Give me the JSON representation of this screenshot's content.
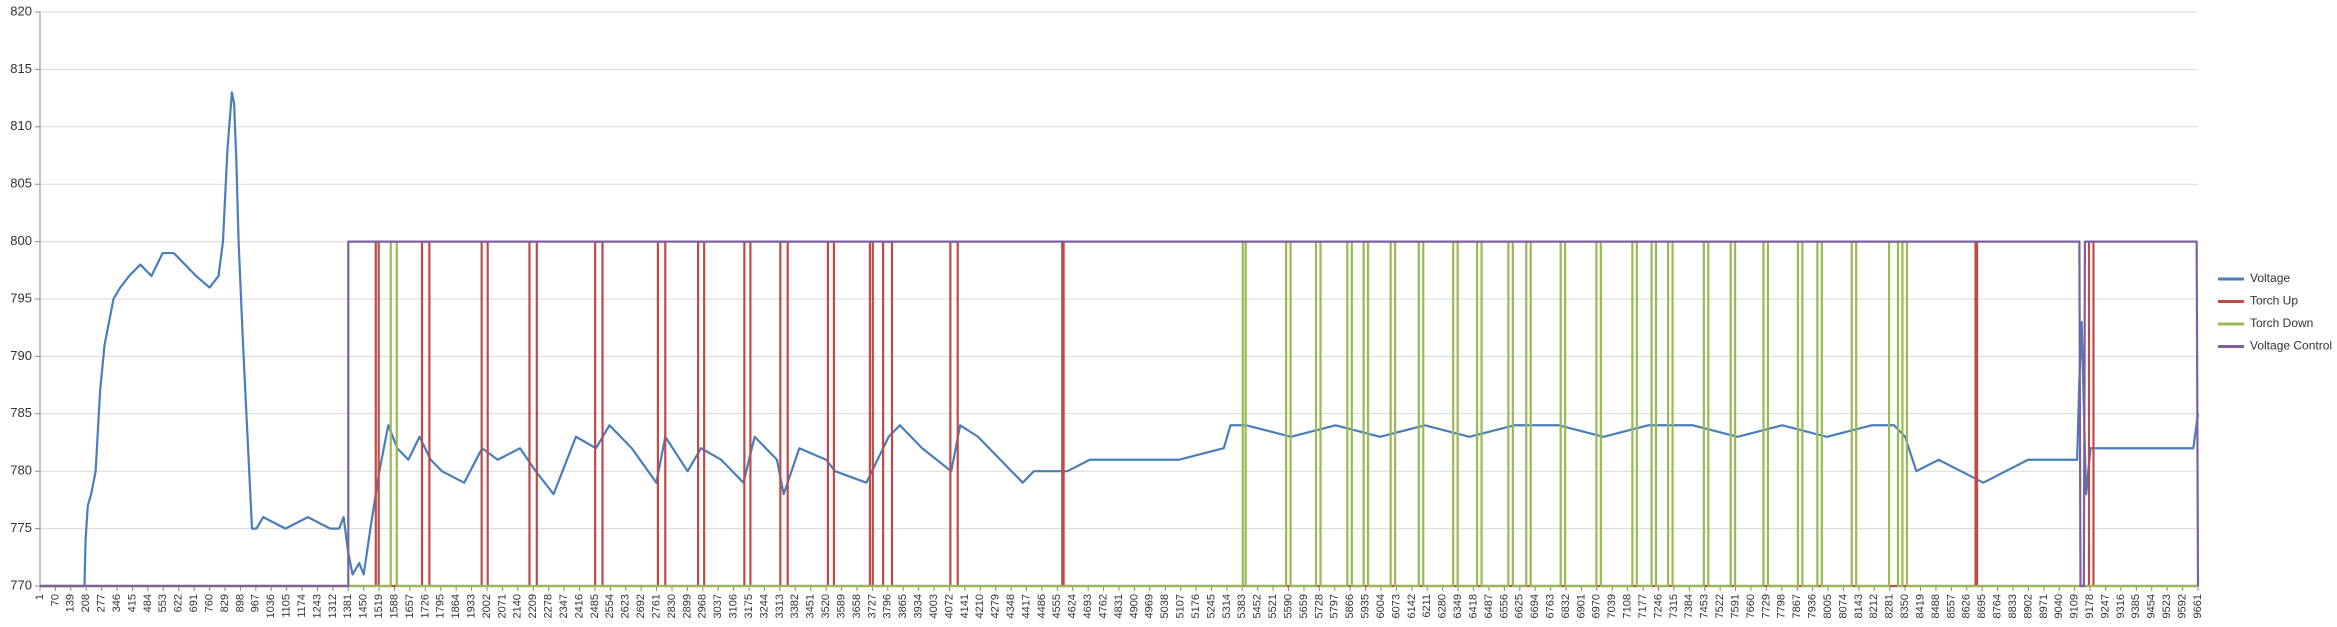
{
  "chart_data": {
    "type": "line",
    "xlim": [
      1,
      9661
    ],
    "ylim": [
      770,
      820
    ],
    "yticks": [
      770,
      775,
      780,
      785,
      790,
      795,
      800,
      805,
      810,
      815,
      820
    ],
    "xticks": [
      1,
      70,
      139,
      208,
      277,
      346,
      415,
      484,
      553,
      622,
      691,
      760,
      829,
      898,
      967,
      1036,
      1105,
      1174,
      1243,
      1312,
      1381,
      1450,
      1519,
      1588,
      1657,
      1726,
      1795,
      1864,
      1933,
      2002,
      2071,
      2140,
      2209,
      2278,
      2347,
      2416,
      2485,
      2554,
      2623,
      2692,
      2761,
      2830,
      2899,
      2968,
      3037,
      3106,
      3175,
      3244,
      3313,
      3382,
      3451,
      3520,
      3589,
      3658,
      3727,
      3796,
      3865,
      3934,
      4003,
      4072,
      4141,
      4210,
      4279,
      4348,
      4417,
      4486,
      4555,
      4624,
      4693,
      4762,
      4831,
      4900,
      4969,
      5038,
      5107,
      5176,
      5245,
      5314,
      5383,
      5452,
      5521,
      5590,
      5659,
      5728,
      5797,
      5866,
      5935,
      6004,
      6073,
      6142,
      6211,
      6280,
      6349,
      6418,
      6487,
      6556,
      6625,
      6694,
      6763,
      6832,
      6901,
      6970,
      7039,
      7108,
      7177,
      7246,
      7315,
      7384,
      7453,
      7522,
      7591,
      7660,
      7729,
      7798,
      7867,
      7936,
      8005,
      8074,
      8143,
      8212,
      8281,
      8350,
      8419,
      8488,
      8557,
      8626,
      8695,
      8764,
      8833,
      8902,
      8971,
      9040,
      9109,
      9178,
      9247,
      9316,
      9385,
      9454,
      9523,
      9592,
      9661
    ],
    "grid": true,
    "legend": "right",
    "series": [
      {
        "name": "Voltage",
        "color": "#4a7ebb",
        "x": [
          1,
          200,
          205,
          215,
          230,
          250,
          270,
          290,
          310,
          330,
          360,
          400,
          450,
          500,
          550,
          600,
          650,
          700,
          760,
          800,
          820,
          840,
          860,
          870,
          880,
          890,
          910,
          930,
          950,
          970,
          1000,
          1100,
          1200,
          1300,
          1340,
          1360,
          1380,
          1400,
          1430,
          1450,
          1480,
          1520,
          1560,
          1600,
          1650,
          1700,
          1750,
          1800,
          1900,
          1980,
          2050,
          2150,
          2220,
          2300,
          2400,
          2490,
          2550,
          2650,
          2760,
          2800,
          2900,
          2960,
          3050,
          3150,
          3200,
          3300,
          3330,
          3400,
          3520,
          3560,
          3700,
          3800,
          3850,
          3950,
          4080,
          4120,
          4200,
          4300,
          4400,
          4450,
          4600,
          4700,
          4900,
          5100,
          5300,
          5330,
          5400,
          5600,
          5800,
          6000,
          6200,
          6400,
          6600,
          6800,
          7000,
          7200,
          7400,
          7600,
          7800,
          8000,
          8200,
          8300,
          8350,
          8400,
          8500,
          8600,
          8700,
          8900,
          9100,
          9120,
          9130,
          9140,
          9160,
          9180,
          9200,
          9400,
          9640,
          9661
        ],
        "values": [
          770,
          770,
          774,
          777,
          778,
          780,
          787,
          791,
          793,
          795,
          796,
          797,
          798,
          797,
          799,
          799,
          798,
          797,
          796,
          797,
          800,
          808,
          813,
          812,
          807,
          800,
          791,
          783,
          775,
          775,
          776,
          775,
          776,
          775,
          775,
          776,
          773,
          771,
          772,
          771,
          775,
          780,
          784,
          782,
          781,
          783,
          781,
          780,
          779,
          782,
          781,
          782,
          780,
          778,
          783,
          782,
          784,
          782,
          779,
          783,
          780,
          782,
          781,
          779,
          783,
          781,
          778,
          782,
          781,
          780,
          779,
          783,
          784,
          782,
          780,
          784,
          783,
          781,
          779,
          780,
          780,
          781,
          781,
          781,
          782,
          784,
          784,
          783,
          784,
          783,
          784,
          783,
          784,
          784,
          783,
          784,
          784,
          783,
          784,
          783,
          784,
          784,
          783,
          780,
          781,
          780,
          779,
          781,
          781,
          781,
          788,
          793,
          778,
          782,
          782,
          782,
          782,
          785
        ]
      },
      {
        "name": "Torch Up",
        "color": "#be4b48",
        "x": [
          1,
          1504,
          1504,
          1517,
          1517,
          1711,
          1711,
          1744,
          1744,
          1978,
          1978,
          2005,
          2005,
          2192,
          2192,
          2225,
          2225,
          2486,
          2486,
          2519,
          2519,
          2767,
          2767,
          2800,
          2800,
          2947,
          2947,
          2974,
          2974,
          3154,
          3154,
          3181,
          3181,
          3315,
          3315,
          3348,
          3348,
          3528,
          3528,
          3555,
          3555,
          3716,
          3716,
          3729,
          3729,
          3775,
          3775,
          3815,
          3815,
          4076,
          4076,
          4109,
          4109,
          4577,
          4577,
          4583,
          4583,
          8665,
          8665,
          8672,
          8672,
          9173,
          9173,
          9193,
          9193,
          9661
        ],
        "values": [
          770,
          770,
          800,
          800,
          770,
          770,
          800,
          800,
          770,
          770,
          800,
          800,
          770,
          770,
          800,
          800,
          770,
          770,
          800,
          800,
          770,
          770,
          800,
          800,
          770,
          770,
          800,
          800,
          770,
          770,
          800,
          800,
          770,
          770,
          800,
          800,
          770,
          770,
          800,
          800,
          770,
          770,
          800,
          800,
          770,
          770,
          800,
          800,
          770,
          770,
          800,
          800,
          770,
          770,
          800,
          800,
          770,
          770,
          800,
          800,
          770,
          770,
          800,
          800,
          770,
          770
        ]
      },
      {
        "name": "Torch Down",
        "color": "#98b954",
        "x": [
          1,
          1571,
          1571,
          1598,
          1598,
          5385,
          5385,
          5398,
          5398,
          5579,
          5579,
          5599,
          5599,
          5713,
          5713,
          5733,
          5733,
          5853,
          5853,
          5873,
          5873,
          5926,
          5926,
          5946,
          5946,
          6047,
          6047,
          6067,
          6067,
          6173,
          6173,
          6193,
          6193,
          6327,
          6327,
          6347,
          6347,
          6434,
          6434,
          6454,
          6454,
          6574,
          6574,
          6594,
          6594,
          6654,
          6654,
          6674,
          6674,
          6808,
          6808,
          6828,
          6828,
          6968,
          6968,
          6988,
          6988,
          7129,
          7129,
          7149,
          7149,
          7215,
          7215,
          7235,
          7235,
          7289,
          7289,
          7309,
          7309,
          7449,
          7449,
          7469,
          7469,
          7569,
          7569,
          7589,
          7589,
          7716,
          7716,
          7736,
          7736,
          7870,
          7870,
          7890,
          7890,
          7957,
          7957,
          7977,
          7977,
          8111,
          8111,
          8131,
          8131,
          8278,
          8278,
          8318,
          8318,
          8338,
          8338,
          8358,
          8358,
          9661
        ],
        "values": [
          770,
          770,
          800,
          800,
          770,
          770,
          800,
          800,
          770,
          770,
          800,
          800,
          770,
          770,
          800,
          800,
          770,
          770,
          800,
          800,
          770,
          770,
          800,
          800,
          770,
          770,
          800,
          800,
          770,
          770,
          800,
          800,
          770,
          770,
          800,
          800,
          770,
          770,
          800,
          800,
          770,
          770,
          800,
          800,
          770,
          770,
          800,
          800,
          770,
          770,
          800,
          800,
          770,
          770,
          800,
          800,
          770,
          770,
          800,
          800,
          770,
          770,
          800,
          800,
          770,
          770,
          800,
          800,
          770,
          770,
          800,
          800,
          770,
          770,
          800,
          800,
          770,
          770,
          800,
          800,
          770,
          770,
          800,
          800,
          770,
          770,
          800,
          800,
          770,
          770,
          800,
          800,
          770,
          770,
          800,
          800,
          770,
          770,
          800,
          800,
          770,
          770
        ]
      },
      {
        "name": "Voltage Control",
        "color": "#7d60a0",
        "x": [
          1,
          1381,
          1381,
          9130,
          9135,
          9150,
          9155,
          9655,
          9661
        ],
        "values": [
          770,
          770,
          800,
          800,
          770,
          770,
          800,
          800,
          770
        ]
      }
    ]
  }
}
